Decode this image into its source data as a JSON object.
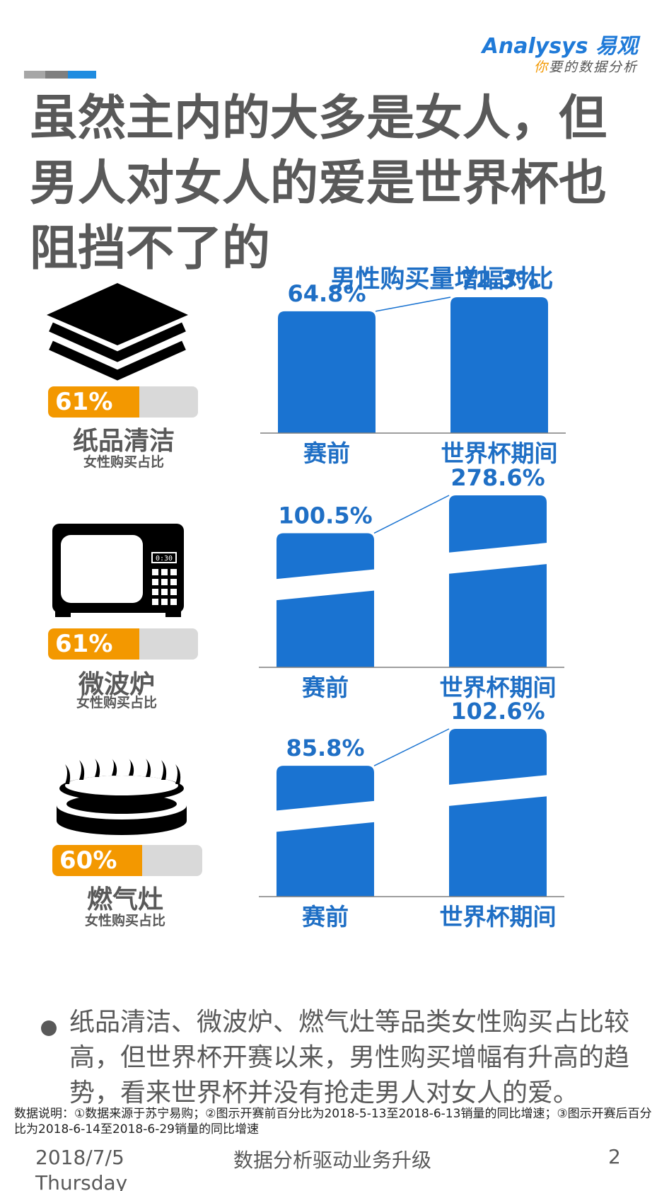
{
  "logo": {
    "brand": "Analysys 易观",
    "slogan_highlight": "你",
    "slogan_rest": "要的数据分析"
  },
  "headline": "虽然主内的大多是女人，但男人对女人的爱是世界杯也阻挡不了的",
  "chart_title": "男性购买量增幅对比",
  "categories_info": [
    {
      "name": "纸品清洁",
      "subtitle": "女性购买占比",
      "female_share_label": "61%",
      "female_share": 0.61,
      "icon": "paper-stack-icon"
    },
    {
      "name": "微波炉",
      "subtitle": "女性购买占比",
      "female_share_label": "61%",
      "female_share": 0.61,
      "icon": "microwave-icon"
    },
    {
      "name": "燃气灶",
      "subtitle": "女性购买占比",
      "female_share_label": "60%",
      "female_share": 0.6,
      "icon": "gas-stove-icon"
    }
  ],
  "microwave_display": "0:30",
  "chart_data": [
    {
      "type": "bar",
      "categories": [
        "赛前",
        "世界杯期间"
      ],
      "values": [
        64.8,
        72.3
      ],
      "labels": [
        "64.8%",
        "72.3%"
      ],
      "axis_break": false
    },
    {
      "type": "bar",
      "categories": [
        "赛前",
        "世界杯期间"
      ],
      "values": [
        100.5,
        278.6
      ],
      "labels": [
        "100.5%",
        "278.6%"
      ],
      "axis_break": true
    },
    {
      "type": "bar",
      "categories": [
        "赛前",
        "世界杯期间"
      ],
      "values": [
        85.8,
        102.6
      ],
      "labels": [
        "85.8%",
        "102.6%"
      ],
      "axis_break": true
    }
  ],
  "colors": {
    "bar": "#1a73d1",
    "accent": "#f39800",
    "title_blue": "#1f6fc5",
    "text": "#595959",
    "track": "#d9d9d9"
  },
  "topbar_colors": [
    "#a6a6a6",
    "#7f7f7f",
    "#1f8ce0"
  ],
  "bullet": "纸品清洁、微波炉、燃气灶等品类女性购买占比较高，但世界杯开赛以来，男性购买增幅有升高的趋势，看来世界杯并没有抢走男人对女人的爱。",
  "note": "数据说明：①数据来源于苏宁易购；②图示开赛前百分比为2018-5-13至2018-6-13销量的同比增速；③图示开赛后百分比为2018-6-14至2018-6-29销量的同比增速",
  "footer": {
    "date": "2018/7/5",
    "weekday": "Thursday",
    "center": "数据分析驱动业务升级",
    "page": "2"
  }
}
